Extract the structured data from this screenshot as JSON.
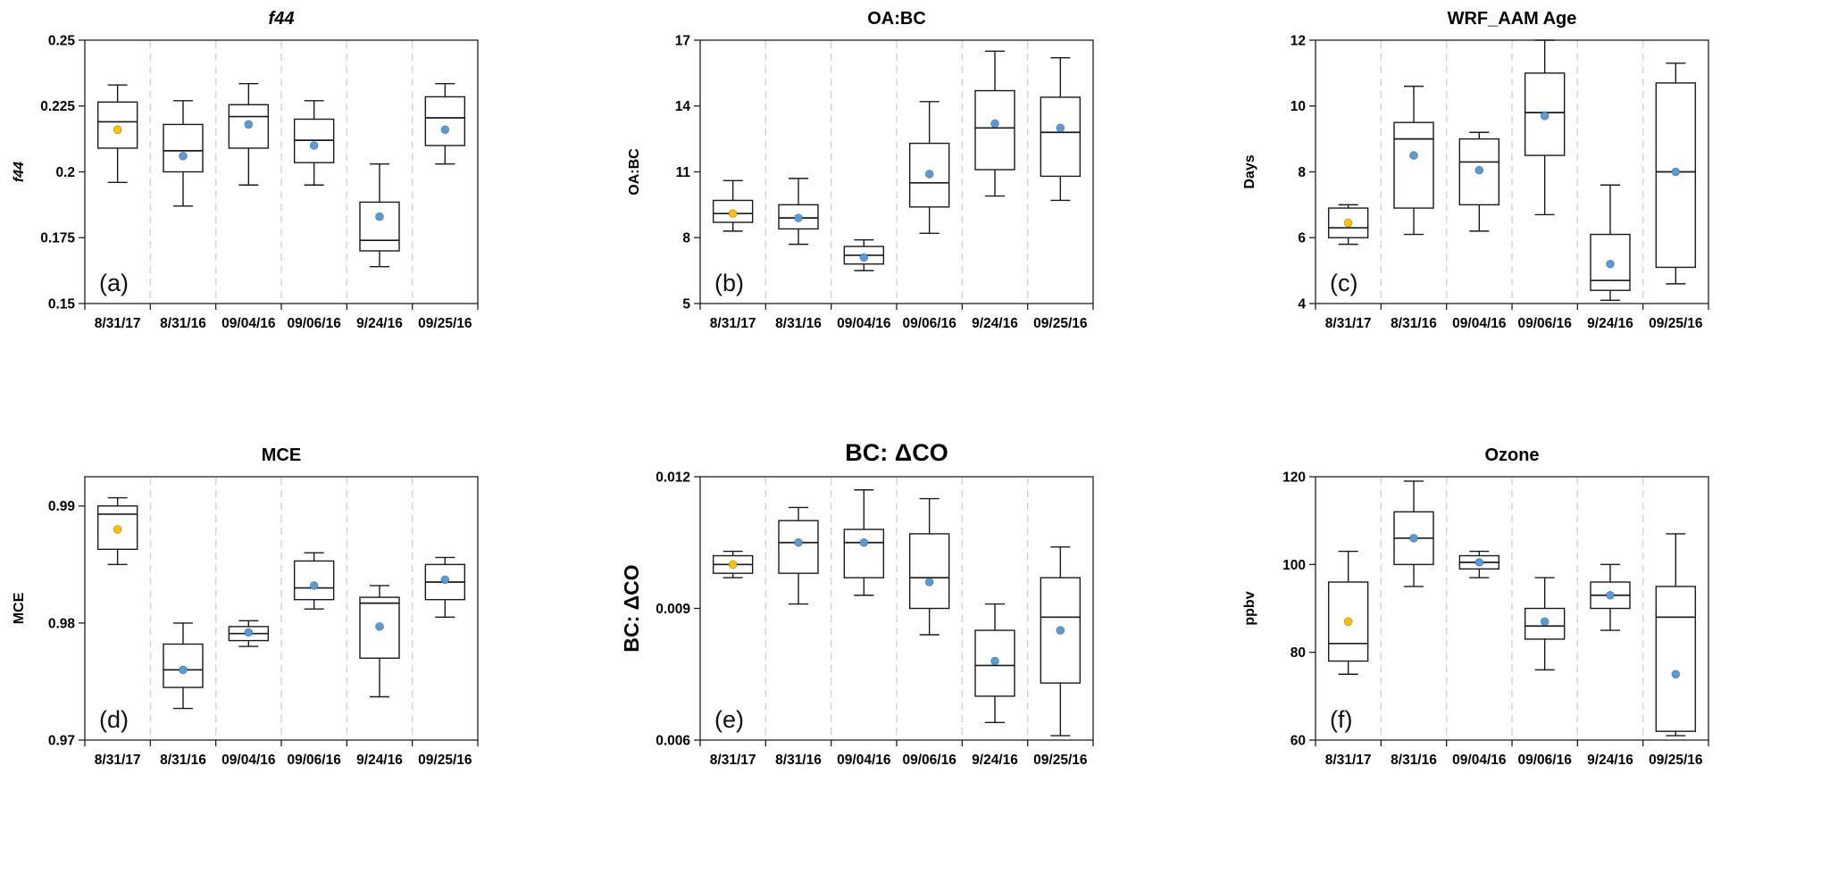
{
  "style": {
    "frame_color": "#1f1f1f",
    "box_stroke": "#1a1a1a",
    "grid_color": "#d2d2d2",
    "mean_blue": "#5B9BD5",
    "mean_orange": "#FFC000",
    "background": "#ffffff"
  },
  "chart_data": [
    {
      "type": "boxplot",
      "key": "a",
      "panel_label": "(a)",
      "title": "f44",
      "title_style": "italic",
      "title_size": "normal",
      "ylabel": "f44",
      "ylabel_style": "italic",
      "ylabel_size": "normal",
      "ylim": [
        0.15,
        0.25
      ],
      "yticks": [
        0.15,
        0.175,
        0.2,
        0.225,
        0.25
      ],
      "ytick_labels": [
        "0.15",
        "0.175",
        "0.2",
        "0.225",
        "0.25"
      ],
      "grid": "dashed-vertical-separators",
      "categories": [
        "8/31/17",
        "8/31/16",
        "09/04/16",
        "09/06/16",
        "9/24/16",
        "09/25/16"
      ],
      "boxes": [
        {
          "low": 0.196,
          "q1": 0.209,
          "median": 0.219,
          "q3": 0.2265,
          "high": 0.233,
          "mean": 0.216
        },
        {
          "low": 0.187,
          "q1": 0.2,
          "median": 0.208,
          "q3": 0.218,
          "high": 0.227,
          "mean": 0.206
        },
        {
          "low": 0.195,
          "q1": 0.209,
          "median": 0.221,
          "q3": 0.2255,
          "high": 0.2335,
          "mean": 0.218
        },
        {
          "low": 0.195,
          "q1": 0.2035,
          "median": 0.212,
          "q3": 0.22,
          "high": 0.227,
          "mean": 0.21
        },
        {
          "low": 0.164,
          "q1": 0.17,
          "median": 0.174,
          "q3": 0.1885,
          "high": 0.203,
          "mean": 0.183
        },
        {
          "low": 0.203,
          "q1": 0.21,
          "median": 0.2205,
          "q3": 0.2285,
          "high": 0.2335,
          "mean": 0.216
        }
      ],
      "mean_colors": [
        "#FFC000",
        "#5B9BD5",
        "#5B9BD5",
        "#5B9BD5",
        "#5B9BD5",
        "#5B9BD5"
      ]
    },
    {
      "type": "boxplot",
      "key": "b",
      "panel_label": "(b)",
      "title": "OA:BC",
      "title_style": "normal",
      "title_size": "normal",
      "ylabel": "OA:BC",
      "ylabel_style": "normal",
      "ylabel_size": "normal",
      "ylim": [
        5,
        17
      ],
      "yticks": [
        5,
        8,
        11,
        14,
        17
      ],
      "ytick_labels": [
        "5",
        "8",
        "11",
        "14",
        "17"
      ],
      "grid": "dashed-vertical-separators",
      "categories": [
        "8/31/17",
        "8/31/16",
        "09/04/16",
        "09/06/16",
        "9/24/16",
        "09/25/16"
      ],
      "boxes": [
        {
          "low": 8.3,
          "q1": 8.7,
          "median": 9.1,
          "q3": 9.7,
          "high": 10.6,
          "mean": 9.1
        },
        {
          "low": 7.7,
          "q1": 8.4,
          "median": 8.9,
          "q3": 9.5,
          "high": 10.7,
          "mean": 8.9
        },
        {
          "low": 6.5,
          "q1": 6.8,
          "median": 7.2,
          "q3": 7.6,
          "high": 7.9,
          "mean": 7.1
        },
        {
          "low": 8.2,
          "q1": 9.4,
          "median": 10.5,
          "q3": 12.3,
          "high": 14.2,
          "mean": 10.9
        },
        {
          "low": 9.9,
          "q1": 11.1,
          "median": 13.0,
          "q3": 14.7,
          "high": 16.5,
          "mean": 13.2
        },
        {
          "low": 9.7,
          "q1": 10.8,
          "median": 12.8,
          "q3": 14.4,
          "high": 16.2,
          "mean": 13.0
        }
      ],
      "mean_colors": [
        "#FFC000",
        "#5B9BD5",
        "#5B9BD5",
        "#5B9BD5",
        "#5B9BD5",
        "#5B9BD5"
      ]
    },
    {
      "type": "boxplot",
      "key": "c",
      "panel_label": "(c)",
      "title": "WRF_AAM Age",
      "title_style": "normal",
      "title_size": "normal",
      "ylabel": "Days",
      "ylabel_style": "normal",
      "ylabel_size": "normal",
      "ylim": [
        4,
        12
      ],
      "yticks": [
        4,
        6,
        8,
        10,
        12
      ],
      "ytick_labels": [
        "4",
        "6",
        "8",
        "10",
        "12"
      ],
      "grid": "dashed-vertical-separators",
      "categories": [
        "8/31/17",
        "8/31/16",
        "09/04/16",
        "09/06/16",
        "9/24/16",
        "09/25/16"
      ],
      "boxes": [
        {
          "low": 5.8,
          "q1": 6.0,
          "median": 6.3,
          "q3": 6.9,
          "high": 7.0,
          "mean": 6.45
        },
        {
          "low": 6.1,
          "q1": 6.9,
          "median": 9.0,
          "q3": 9.5,
          "high": 10.6,
          "mean": 8.5
        },
        {
          "low": 6.2,
          "q1": 7.0,
          "median": 8.3,
          "q3": 9.0,
          "high": 9.2,
          "mean": 8.05
        },
        {
          "low": 6.7,
          "q1": 8.5,
          "median": 9.8,
          "q3": 11.0,
          "high": 12.0,
          "mean": 9.7
        },
        {
          "low": 4.1,
          "q1": 4.4,
          "median": 4.7,
          "q3": 6.1,
          "high": 7.6,
          "mean": 5.2
        },
        {
          "low": 4.6,
          "q1": 5.1,
          "median": 8.0,
          "q3": 10.7,
          "high": 11.3,
          "mean": 8.0
        }
      ],
      "mean_colors": [
        "#FFC000",
        "#5B9BD5",
        "#5B9BD5",
        "#5B9BD5",
        "#5B9BD5",
        "#5B9BD5"
      ]
    },
    {
      "type": "boxplot",
      "key": "d",
      "panel_label": "(d)",
      "title": "MCE",
      "title_style": "normal",
      "title_size": "normal",
      "ylabel": "MCE",
      "ylabel_style": "normal",
      "ylabel_size": "normal",
      "ylim": [
        0.97,
        0.9925
      ],
      "yticks": [
        0.97,
        0.98,
        0.99
      ],
      "ytick_labels": [
        "0.97",
        "0.98",
        "0.99"
      ],
      "grid": "dashed-vertical-separators",
      "categories": [
        "8/31/17",
        "8/31/16",
        "09/04/16",
        "09/06/16",
        "9/24/16",
        "09/25/16"
      ],
      "boxes": [
        {
          "low": 0.985,
          "q1": 0.9863,
          "median": 0.9893,
          "q3": 0.99,
          "high": 0.9907,
          "mean": 0.988
        },
        {
          "low": 0.9727,
          "q1": 0.9745,
          "median": 0.976,
          "q3": 0.9782,
          "high": 0.98,
          "mean": 0.976
        },
        {
          "low": 0.978,
          "q1": 0.9785,
          "median": 0.9791,
          "q3": 0.9797,
          "high": 0.9802,
          "mean": 0.9792
        },
        {
          "low": 0.9812,
          "q1": 0.982,
          "median": 0.983,
          "q3": 0.9853,
          "high": 0.986,
          "mean": 0.9832
        },
        {
          "low": 0.9737,
          "q1": 0.977,
          "median": 0.9817,
          "q3": 0.9822,
          "high": 0.9832,
          "mean": 0.9797
        },
        {
          "low": 0.9805,
          "q1": 0.982,
          "median": 0.9835,
          "q3": 0.985,
          "high": 0.9856,
          "mean": 0.9837
        }
      ],
      "mean_colors": [
        "#FFC000",
        "#5B9BD5",
        "#5B9BD5",
        "#5B9BD5",
        "#5B9BD5",
        "#5B9BD5"
      ]
    },
    {
      "type": "boxplot",
      "key": "e",
      "panel_label": "(e)",
      "title": "BC: ΔCO",
      "title_style": "normal",
      "title_size": "large",
      "ylabel": "BC: ΔCO",
      "ylabel_style": "normal",
      "ylabel_size": "large",
      "ylim": [
        0.006,
        0.012
      ],
      "yticks": [
        0.006,
        0.009,
        0.012
      ],
      "ytick_labels": [
        "0.006",
        "0.009",
        "0.012"
      ],
      "grid": "dashed-vertical-separators",
      "categories": [
        "8/31/17",
        "8/31/16",
        "09/04/16",
        "09/06/16",
        "9/24/16",
        "09/25/16"
      ],
      "boxes": [
        {
          "low": 0.0097,
          "q1": 0.0098,
          "median": 0.01,
          "q3": 0.0102,
          "high": 0.0103,
          "mean": 0.01
        },
        {
          "low": 0.0091,
          "q1": 0.0098,
          "median": 0.0105,
          "q3": 0.011,
          "high": 0.0113,
          "mean": 0.0105
        },
        {
          "low": 0.0093,
          "q1": 0.0097,
          "median": 0.0105,
          "q3": 0.0108,
          "high": 0.0117,
          "mean": 0.0105
        },
        {
          "low": 0.0084,
          "q1": 0.009,
          "median": 0.0097,
          "q3": 0.0107,
          "high": 0.0115,
          "mean": 0.0096
        },
        {
          "low": 0.0064,
          "q1": 0.007,
          "median": 0.0077,
          "q3": 0.0085,
          "high": 0.0091,
          "mean": 0.0078
        },
        {
          "low": 0.0061,
          "q1": 0.0073,
          "median": 0.0088,
          "q3": 0.0097,
          "high": 0.0104,
          "mean": 0.0085
        }
      ],
      "mean_colors": [
        "#FFC000",
        "#5B9BD5",
        "#5B9BD5",
        "#5B9BD5",
        "#5B9BD5",
        "#5B9BD5"
      ]
    },
    {
      "type": "boxplot",
      "key": "f",
      "panel_label": "(f)",
      "title": "Ozone",
      "title_style": "normal",
      "title_size": "normal",
      "ylabel": "ppbv",
      "ylabel_style": "normal",
      "ylabel_size": "normal",
      "ylim": [
        60,
        120
      ],
      "yticks": [
        60,
        80,
        100,
        120
      ],
      "ytick_labels": [
        "60",
        "80",
        "100",
        "120"
      ],
      "grid": "dashed-vertical-separators",
      "categories": [
        "8/31/17",
        "8/31/16",
        "09/04/16",
        "09/06/16",
        "9/24/16",
        "09/25/16"
      ],
      "boxes": [
        {
          "low": 75,
          "q1": 78,
          "median": 82,
          "q3": 96,
          "high": 103,
          "mean": 87
        },
        {
          "low": 95,
          "q1": 100,
          "median": 106,
          "q3": 112,
          "high": 119,
          "mean": 106
        },
        {
          "low": 97,
          "q1": 99,
          "median": 100.5,
          "q3": 102,
          "high": 103,
          "mean": 100.5
        },
        {
          "low": 76,
          "q1": 83,
          "median": 86,
          "q3": 90,
          "high": 97,
          "mean": 87
        },
        {
          "low": 85,
          "q1": 90,
          "median": 93,
          "q3": 96,
          "high": 100,
          "mean": 93
        },
        {
          "low": 61,
          "q1": 62,
          "median": 88,
          "q3": 95,
          "high": 107,
          "mean": 75
        }
      ],
      "mean_colors": [
        "#FFC000",
        "#5B9BD5",
        "#5B9BD5",
        "#5B9BD5",
        "#5B9BD5",
        "#5B9BD5"
      ]
    }
  ]
}
